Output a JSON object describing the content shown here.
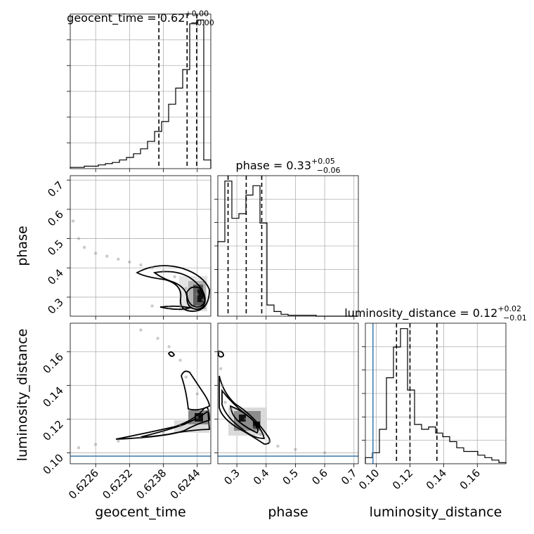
{
  "chart_data": {
    "type": "corner",
    "parameters": [
      "geocent_time",
      "phase",
      "luminosity_distance"
    ],
    "titles": [
      {
        "name": "geocent_time",
        "median": "0.62",
        "plus": "+0.00",
        "minus": "−0.00"
      },
      {
        "name": "phase",
        "median": "0.33",
        "plus": "+0.05",
        "minus": "−0.06"
      },
      {
        "name": "luminosity_distance",
        "median": "0.12",
        "plus": "+0.02",
        "minus": "−0.01"
      }
    ],
    "axes": {
      "geocent_time": {
        "range": [
          0.62215,
          0.62464
        ],
        "ticks": [
          0.6226,
          0.6232,
          0.6238,
          0.6244
        ],
        "tick_labels": [
          "0.6226",
          "0.6232",
          "0.6238",
          "0.6244"
        ]
      },
      "phase": {
        "range": [
          0.235,
          0.715
        ],
        "ticks": [
          0.3,
          0.4,
          0.5,
          0.6,
          0.7
        ],
        "tick_labels": [
          "0.3",
          "0.4",
          "0.5",
          "0.6",
          "0.7"
        ]
      },
      "luminosity_distance": {
        "range": [
          0.0935,
          0.177
        ],
        "ticks": [
          0.1,
          0.12,
          0.14,
          0.16
        ],
        "tick_labels": [
          "0.10",
          "0.12",
          "0.14",
          "0.16"
        ]
      }
    },
    "quantiles": {
      "geocent_time": [
        0.62372,
        0.62422,
        0.62439
      ],
      "phase": [
        0.27,
        0.332,
        0.385
      ],
      "luminosity_distance": [
        0.112,
        0.12,
        0.136
      ]
    },
    "truths": {
      "luminosity_distance": 0.098
    },
    "histograms": {
      "geocent_time": {
        "edges_start": 0.62215,
        "bin_width": 0.0001245,
        "counts": [
          1,
          1,
          2,
          2,
          3,
          4,
          5,
          7,
          9,
          12,
          16,
          22,
          30,
          38,
          52,
          65,
          80,
          117,
          120,
          7
        ]
      },
      "phase": {
        "edges_start": 0.235,
        "bin_width": 0.024,
        "counts": [
          80,
          145,
          105,
          110,
          130,
          140,
          100,
          12,
          5,
          2,
          1,
          1,
          1,
          1,
          0,
          0,
          0,
          0,
          0,
          0
        ]
      },
      "luminosity_distance": {
        "edges_start": 0.0935,
        "bin_width": 0.004175,
        "counts": [
          5,
          9,
          28,
          70,
          95,
          110,
          60,
          32,
          28,
          30,
          25,
          22,
          18,
          13,
          10,
          10,
          7,
          5,
          3,
          1
        ]
      }
    },
    "density_samples": {
      "phase_vs_geocent_time": [
        [
          0.6222,
          0.56
        ],
        [
          0.6223,
          0.5
        ],
        [
          0.6224,
          0.47
        ],
        [
          0.6226,
          0.45
        ],
        [
          0.6228,
          0.44
        ],
        [
          0.623,
          0.43
        ],
        [
          0.6232,
          0.42
        ],
        [
          0.6234,
          0.41
        ],
        [
          0.6236,
          0.4
        ],
        [
          0.6238,
          0.39
        ],
        [
          0.624,
          0.37
        ],
        [
          0.6242,
          0.33
        ],
        [
          0.6244,
          0.31
        ],
        [
          0.6236,
          0.27
        ],
        [
          0.6239,
          0.265
        ],
        [
          0.6241,
          0.27
        ],
        [
          0.6245,
          0.29
        ]
      ],
      "luminosity_distance_vs_geocent_time": [
        [
          0.6223,
          0.103
        ],
        [
          0.6226,
          0.105
        ],
        [
          0.623,
          0.107
        ],
        [
          0.6234,
          0.109
        ],
        [
          0.6238,
          0.112
        ],
        [
          0.6241,
          0.116
        ],
        [
          0.6244,
          0.121
        ],
        [
          0.6246,
          0.125
        ],
        [
          0.6244,
          0.135
        ],
        [
          0.6242,
          0.145
        ],
        [
          0.6241,
          0.155
        ],
        [
          0.6239,
          0.163
        ],
        [
          0.6237,
          0.168
        ],
        [
          0.6234,
          0.173
        ]
      ],
      "luminosity_distance_vs_phase": [
        [
          0.24,
          0.16
        ],
        [
          0.245,
          0.15
        ],
        [
          0.25,
          0.14
        ],
        [
          0.26,
          0.13
        ],
        [
          0.28,
          0.126
        ],
        [
          0.3,
          0.123
        ],
        [
          0.33,
          0.12
        ],
        [
          0.36,
          0.115
        ],
        [
          0.38,
          0.111
        ],
        [
          0.41,
          0.107
        ],
        [
          0.44,
          0.104
        ],
        [
          0.5,
          0.102
        ],
        [
          0.6,
          0.1
        ]
      ]
    }
  }
}
